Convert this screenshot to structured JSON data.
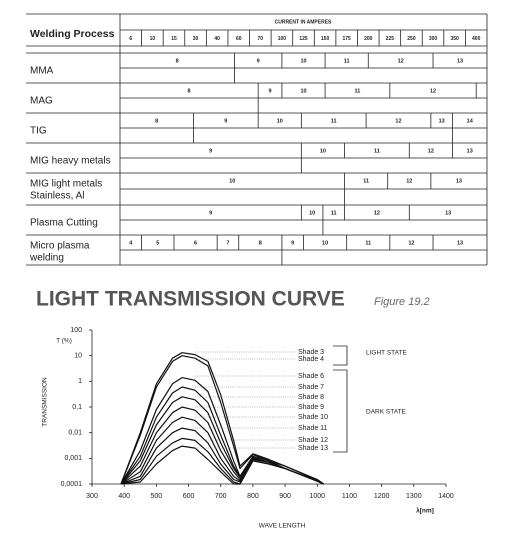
{
  "table": {
    "header": {
      "process": "Welding Process",
      "current": "CURRENT IN AMPERES",
      "currents": [
        6,
        10,
        15,
        30,
        40,
        60,
        70,
        100,
        125,
        150,
        175,
        200,
        225,
        250,
        300,
        350,
        400
      ]
    },
    "rows": [
      {
        "process": [
          "MMA"
        ],
        "shades": [
          8,
          9,
          10,
          11,
          12,
          13
        ]
      },
      {
        "process": [
          "MAG"
        ],
        "shades": [
          8,
          9,
          10,
          11,
          12
        ]
      },
      {
        "process": [
          "TIG"
        ],
        "shades": [
          8,
          9,
          10,
          11,
          12,
          13,
          14
        ]
      },
      {
        "process": [
          "MIG heavy metals"
        ],
        "shades": [
          9,
          10,
          11,
          12,
          13
        ]
      },
      {
        "process": [
          "MIG light metals",
          "Stainless, Al"
        ],
        "shades": [
          10,
          11,
          12,
          13
        ]
      },
      {
        "process": [
          "Plasma Cutting"
        ],
        "shades": [
          9,
          10,
          11,
          12,
          13
        ]
      },
      {
        "process": [
          "Micro plasma",
          "welding"
        ],
        "shades": [
          4,
          5,
          6,
          7,
          8,
          9,
          10,
          11,
          12,
          13
        ]
      }
    ]
  },
  "chart_data": {
    "type": "line",
    "title": "LIGHT TRANSMISSION CURVE",
    "subtitle": "Figure 19.2",
    "xlabel": "WAVE LENGTH",
    "xunit": "λ[nm]",
    "ylabel": "TRANSMISSION",
    "yunit": "T (%)",
    "annotations": [
      "LIGHT STATE",
      "DARK STATE"
    ],
    "yscale": "log",
    "xlim": [
      300,
      1400
    ],
    "ylim": [
      0.0001,
      100
    ],
    "xticks": [
      300,
      400,
      500,
      600,
      700,
      800,
      900,
      1000,
      1100,
      1200,
      1300,
      1400
    ],
    "yticks": [
      100,
      10,
      1,
      {
        "value": 0.1,
        "label": "0,1"
      },
      {
        "value": 0.01,
        "label": "0,01"
      },
      {
        "value": 0.001,
        "label": "0,001"
      },
      {
        "value": 0.0001,
        "label": "0,0001"
      }
    ],
    "x": [
      390,
      450,
      500,
      550,
      580,
      620,
      660,
      700,
      740,
      760,
      800,
      850,
      900,
      1000,
      1020
    ],
    "series": [
      {
        "name": "Shade 3",
        "color": "#111111",
        "values": [
          0.0001,
          0.01,
          0.8,
          8,
          13,
          11,
          6,
          0.3,
          0.005,
          0.0005,
          0.0015,
          0.0009,
          0.0005,
          0.00015,
          0.0001
        ]
      },
      {
        "name": "Shade 4",
        "color": "#111111",
        "values": [
          0.0001,
          0.008,
          0.6,
          6,
          10,
          8,
          4,
          0.15,
          0.003,
          0.0004,
          0.0014,
          0.0008,
          0.0005,
          0.00014,
          0.0001
        ]
      },
      {
        "name": "Shade 6",
        "color": "#111111",
        "values": [
          0.0001,
          0.002,
          0.08,
          0.8,
          1.4,
          1.1,
          0.4,
          0.02,
          0.0008,
          0.0002,
          0.0012,
          0.0008,
          0.0004,
          0.00013,
          0.0001
        ]
      },
      {
        "name": "Shade 7",
        "color": "#111111",
        "values": [
          0.0001,
          0.0012,
          0.04,
          0.35,
          0.6,
          0.45,
          0.15,
          0.008,
          0.0005,
          0.0002,
          0.0011,
          0.0007,
          0.0004,
          0.00013,
          0.0001
        ]
      },
      {
        "name": "Shade 8",
        "color": "#111111",
        "values": [
          0.0001,
          0.0008,
          0.02,
          0.15,
          0.25,
          0.19,
          0.06,
          0.004,
          0.0004,
          0.00018,
          0.001,
          0.0007,
          0.0004,
          0.00013,
          0.0001
        ]
      },
      {
        "name": "Shade 9",
        "color": "#111111",
        "values": [
          0.0001,
          0.0005,
          0.01,
          0.06,
          0.1,
          0.075,
          0.025,
          0.002,
          0.0003,
          0.00015,
          0.001,
          0.0007,
          0.0004,
          0.00013,
          0.0001
        ]
      },
      {
        "name": "Shade 10",
        "color": "#111111",
        "values": [
          0.0001,
          0.0003,
          0.005,
          0.025,
          0.04,
          0.03,
          0.01,
          0.001,
          0.0002,
          0.00013,
          0.0009,
          0.0007,
          0.0004,
          0.00013,
          0.0001
        ]
      },
      {
        "name": "Shade 11",
        "color": "#111111",
        "values": [
          0.0001,
          0.0002,
          0.0025,
          0.01,
          0.015,
          0.012,
          0.004,
          0.0006,
          0.00015,
          0.00012,
          0.0009,
          0.0007,
          0.0004,
          0.00013,
          0.0001
        ]
      },
      {
        "name": "Shade 12",
        "color": "#111111",
        "values": [
          0.0001,
          0.00015,
          0.0012,
          0.004,
          0.006,
          0.005,
          0.0018,
          0.0004,
          0.00012,
          0.0001,
          0.0008,
          0.0006,
          0.0004,
          0.00013,
          0.0001
        ]
      },
      {
        "name": "Shade 13",
        "color": "#111111",
        "values": [
          0.0001,
          0.00012,
          0.0006,
          0.002,
          0.003,
          0.0025,
          0.0009,
          0.0003,
          0.0001,
          0.0001,
          0.0008,
          0.0006,
          0.0004,
          0.00013,
          0.0001
        ]
      }
    ]
  }
}
